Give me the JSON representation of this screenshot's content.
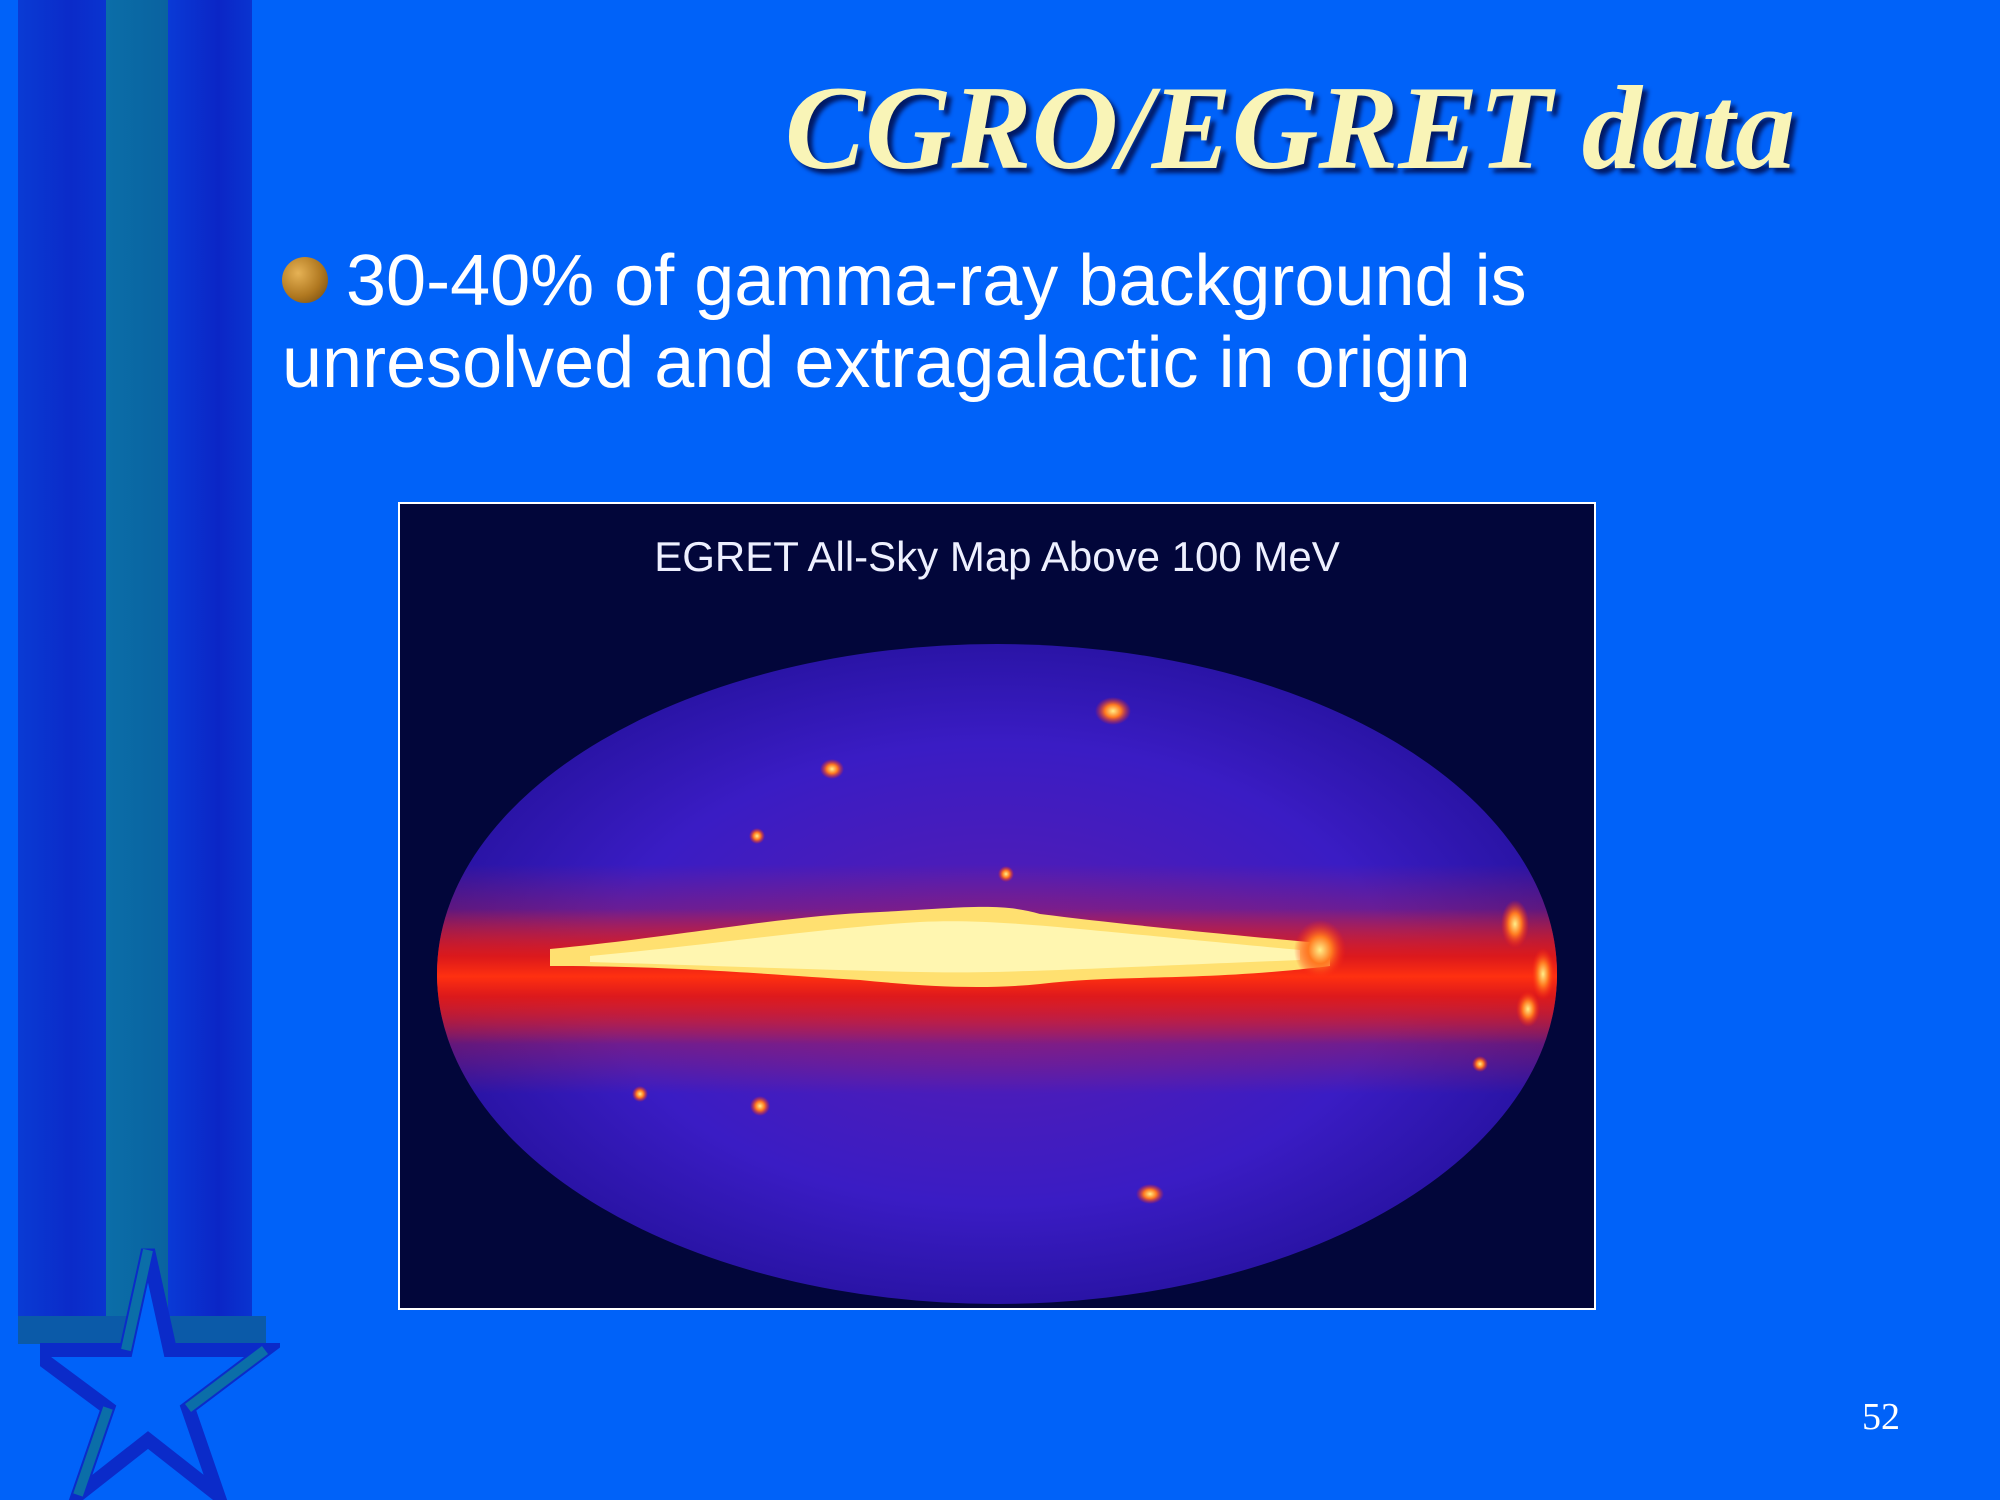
{
  "slide": {
    "title": "CGRO/EGRET data",
    "bullet_text": "30-40% of gamma-ray background is unresolved and extragalactic in origin",
    "page_number": "52"
  },
  "figure": {
    "caption": "EGRET All-Sky Map Above 100 MeV"
  },
  "colors": {
    "background": "#0062f9",
    "title": "#f9f4b7",
    "map_background": "#02063a",
    "map_diffuse": "#3a1cc4",
    "galactic_plane": "#ff2a10",
    "bright_core": "#ffee88"
  },
  "icons": {
    "bullet": "round-bullet-icon",
    "decoration": "star-icon"
  }
}
